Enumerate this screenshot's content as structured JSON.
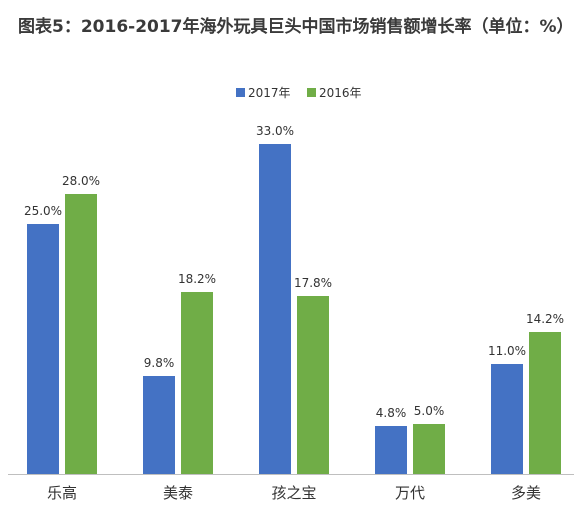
{
  "colors": {
    "series_2017": "#4472C4",
    "series_2016": "#70AD47",
    "axis": "#bfbfbf",
    "text": "#333333"
  },
  "chart_data": {
    "type": "bar",
    "title": "图表5：2016-2017年海外玩具巨头中国市场销售额增长率（单位：%）",
    "categories": [
      "乐高",
      "美泰",
      "孩之宝",
      "万代",
      "多美"
    ],
    "series": [
      {
        "name": "2017年",
        "values": [
          25.0,
          9.8,
          33.0,
          4.8,
          11.0
        ],
        "labels": [
          "25.0%",
          "9.8%",
          "33.0%",
          "4.8%",
          "11.0%"
        ]
      },
      {
        "name": "2016年",
        "values": [
          28.0,
          18.2,
          17.8,
          5.0,
          14.2
        ],
        "labels": [
          "28.0%",
          "18.2%",
          "17.8%",
          "5.0%",
          "14.2%"
        ]
      }
    ],
    "xlabel": "",
    "ylabel": "",
    "ylim": [
      0,
      35
    ],
    "grid": false,
    "legend": "top-center"
  }
}
